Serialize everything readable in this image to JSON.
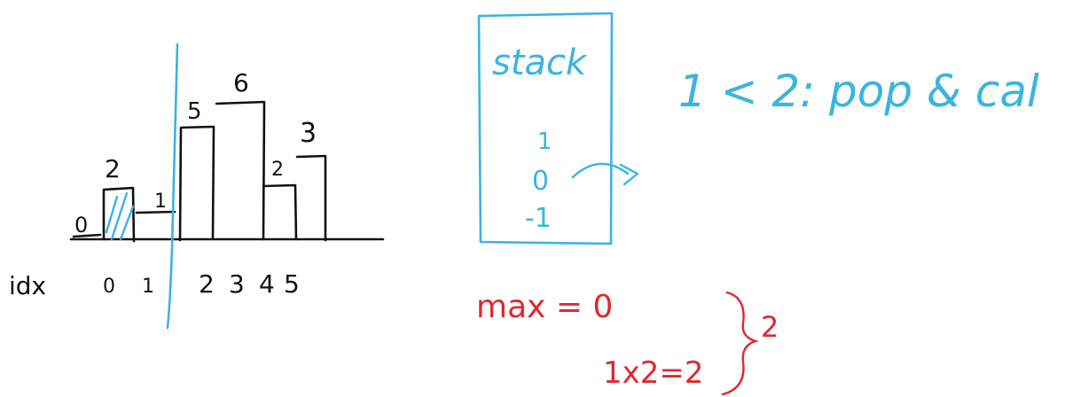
{
  "colors": {
    "ink": "#111111",
    "blue": "#3ab4e2",
    "red": "#e0282f"
  },
  "histogram": {
    "bar_heights": [
      "0",
      "2",
      "1",
      "5",
      "6",
      "2",
      "3"
    ],
    "idx_label": "idx",
    "indices": [
      "0",
      "1",
      "2",
      "3",
      "4",
      "5"
    ]
  },
  "stack": {
    "title": "stack",
    "items": [
      "1",
      "0",
      "-1"
    ]
  },
  "note": "1 < 2: pop & cal",
  "calc": {
    "max_line": "max = 0",
    "product": "1x2=2",
    "result": "2"
  }
}
